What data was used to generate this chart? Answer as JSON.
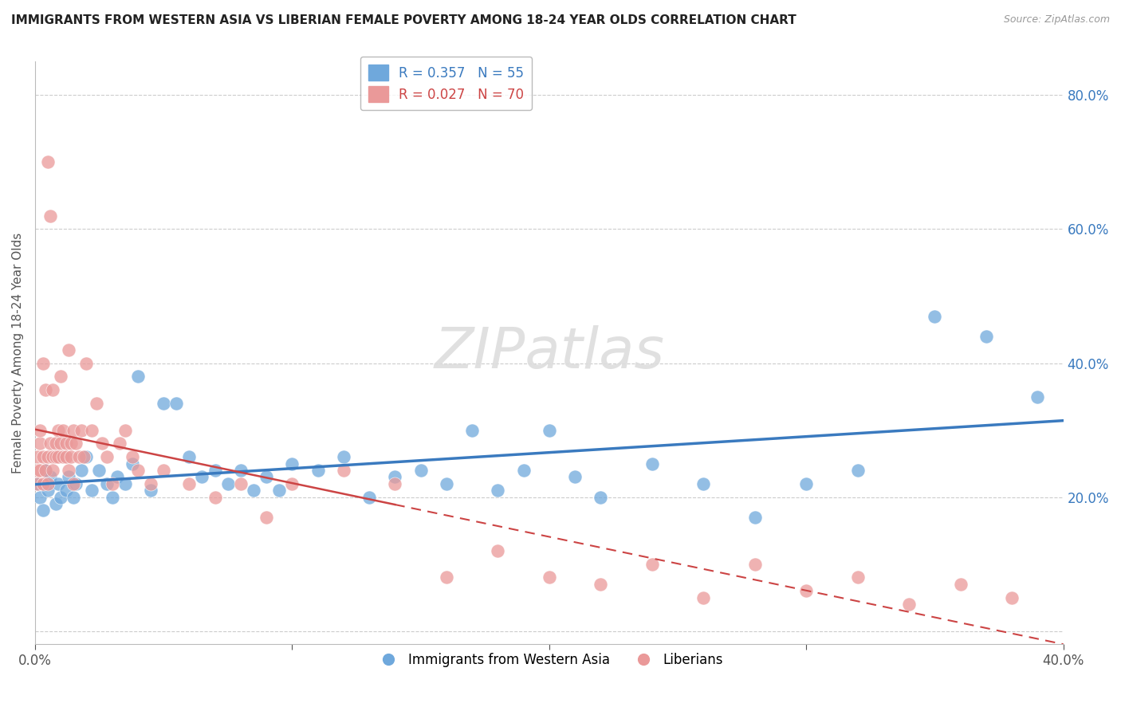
{
  "title": "IMMIGRANTS FROM WESTERN ASIA VS LIBERIAN FEMALE POVERTY AMONG 18-24 YEAR OLDS CORRELATION CHART",
  "source": "Source: ZipAtlas.com",
  "ylabel": "Female Poverty Among 18-24 Year Olds",
  "xlim": [
    0.0,
    0.4
  ],
  "ylim": [
    -0.02,
    0.85
  ],
  "blue_R": 0.357,
  "blue_N": 55,
  "pink_R": 0.027,
  "pink_N": 70,
  "blue_color": "#6fa8dc",
  "pink_color": "#ea9999",
  "blue_line_color": "#3a7abf",
  "pink_line_color": "#cc4444",
  "watermark": "ZIPatlas",
  "legend_label_blue": "Immigrants from Western Asia",
  "legend_label_pink": "Liberians",
  "blue_scatter_x": [
    0.001,
    0.002,
    0.003,
    0.004,
    0.005,
    0.006,
    0.008,
    0.009,
    0.01,
    0.012,
    0.013,
    0.015,
    0.016,
    0.018,
    0.02,
    0.022,
    0.025,
    0.028,
    0.03,
    0.032,
    0.035,
    0.038,
    0.04,
    0.045,
    0.05,
    0.055,
    0.06,
    0.065,
    0.07,
    0.075,
    0.08,
    0.085,
    0.09,
    0.095,
    0.1,
    0.11,
    0.12,
    0.13,
    0.14,
    0.15,
    0.16,
    0.17,
    0.18,
    0.19,
    0.2,
    0.21,
    0.22,
    0.24,
    0.26,
    0.28,
    0.3,
    0.32,
    0.35,
    0.37,
    0.39
  ],
  "blue_scatter_y": [
    0.22,
    0.2,
    0.18,
    0.24,
    0.21,
    0.23,
    0.19,
    0.22,
    0.2,
    0.21,
    0.23,
    0.2,
    0.22,
    0.24,
    0.26,
    0.21,
    0.24,
    0.22,
    0.2,
    0.23,
    0.22,
    0.25,
    0.38,
    0.21,
    0.34,
    0.34,
    0.26,
    0.23,
    0.24,
    0.22,
    0.24,
    0.21,
    0.23,
    0.21,
    0.25,
    0.24,
    0.26,
    0.2,
    0.23,
    0.24,
    0.22,
    0.3,
    0.21,
    0.24,
    0.3,
    0.23,
    0.2,
    0.25,
    0.22,
    0.17,
    0.22,
    0.24,
    0.47,
    0.44,
    0.35
  ],
  "pink_scatter_x": [
    0.001,
    0.001,
    0.001,
    0.002,
    0.002,
    0.002,
    0.003,
    0.003,
    0.003,
    0.004,
    0.004,
    0.005,
    0.005,
    0.005,
    0.006,
    0.006,
    0.007,
    0.007,
    0.007,
    0.008,
    0.008,
    0.009,
    0.009,
    0.01,
    0.01,
    0.011,
    0.011,
    0.012,
    0.012,
    0.013,
    0.013,
    0.014,
    0.014,
    0.015,
    0.015,
    0.016,
    0.017,
    0.018,
    0.019,
    0.02,
    0.022,
    0.024,
    0.026,
    0.028,
    0.03,
    0.033,
    0.035,
    0.038,
    0.04,
    0.045,
    0.05,
    0.06,
    0.07,
    0.08,
    0.09,
    0.1,
    0.12,
    0.14,
    0.16,
    0.18,
    0.2,
    0.22,
    0.24,
    0.26,
    0.28,
    0.3,
    0.32,
    0.34,
    0.36,
    0.38
  ],
  "pink_scatter_y": [
    0.26,
    0.24,
    0.22,
    0.28,
    0.3,
    0.24,
    0.4,
    0.26,
    0.22,
    0.36,
    0.24,
    0.7,
    0.26,
    0.22,
    0.62,
    0.28,
    0.26,
    0.24,
    0.36,
    0.28,
    0.26,
    0.3,
    0.26,
    0.28,
    0.38,
    0.26,
    0.3,
    0.26,
    0.28,
    0.24,
    0.42,
    0.28,
    0.26,
    0.3,
    0.22,
    0.28,
    0.26,
    0.3,
    0.26,
    0.4,
    0.3,
    0.34,
    0.28,
    0.26,
    0.22,
    0.28,
    0.3,
    0.26,
    0.24,
    0.22,
    0.24,
    0.22,
    0.2,
    0.22,
    0.17,
    0.22,
    0.24,
    0.22,
    0.08,
    0.12,
    0.08,
    0.07,
    0.1,
    0.05,
    0.1,
    0.06,
    0.08,
    0.04,
    0.07,
    0.05
  ]
}
